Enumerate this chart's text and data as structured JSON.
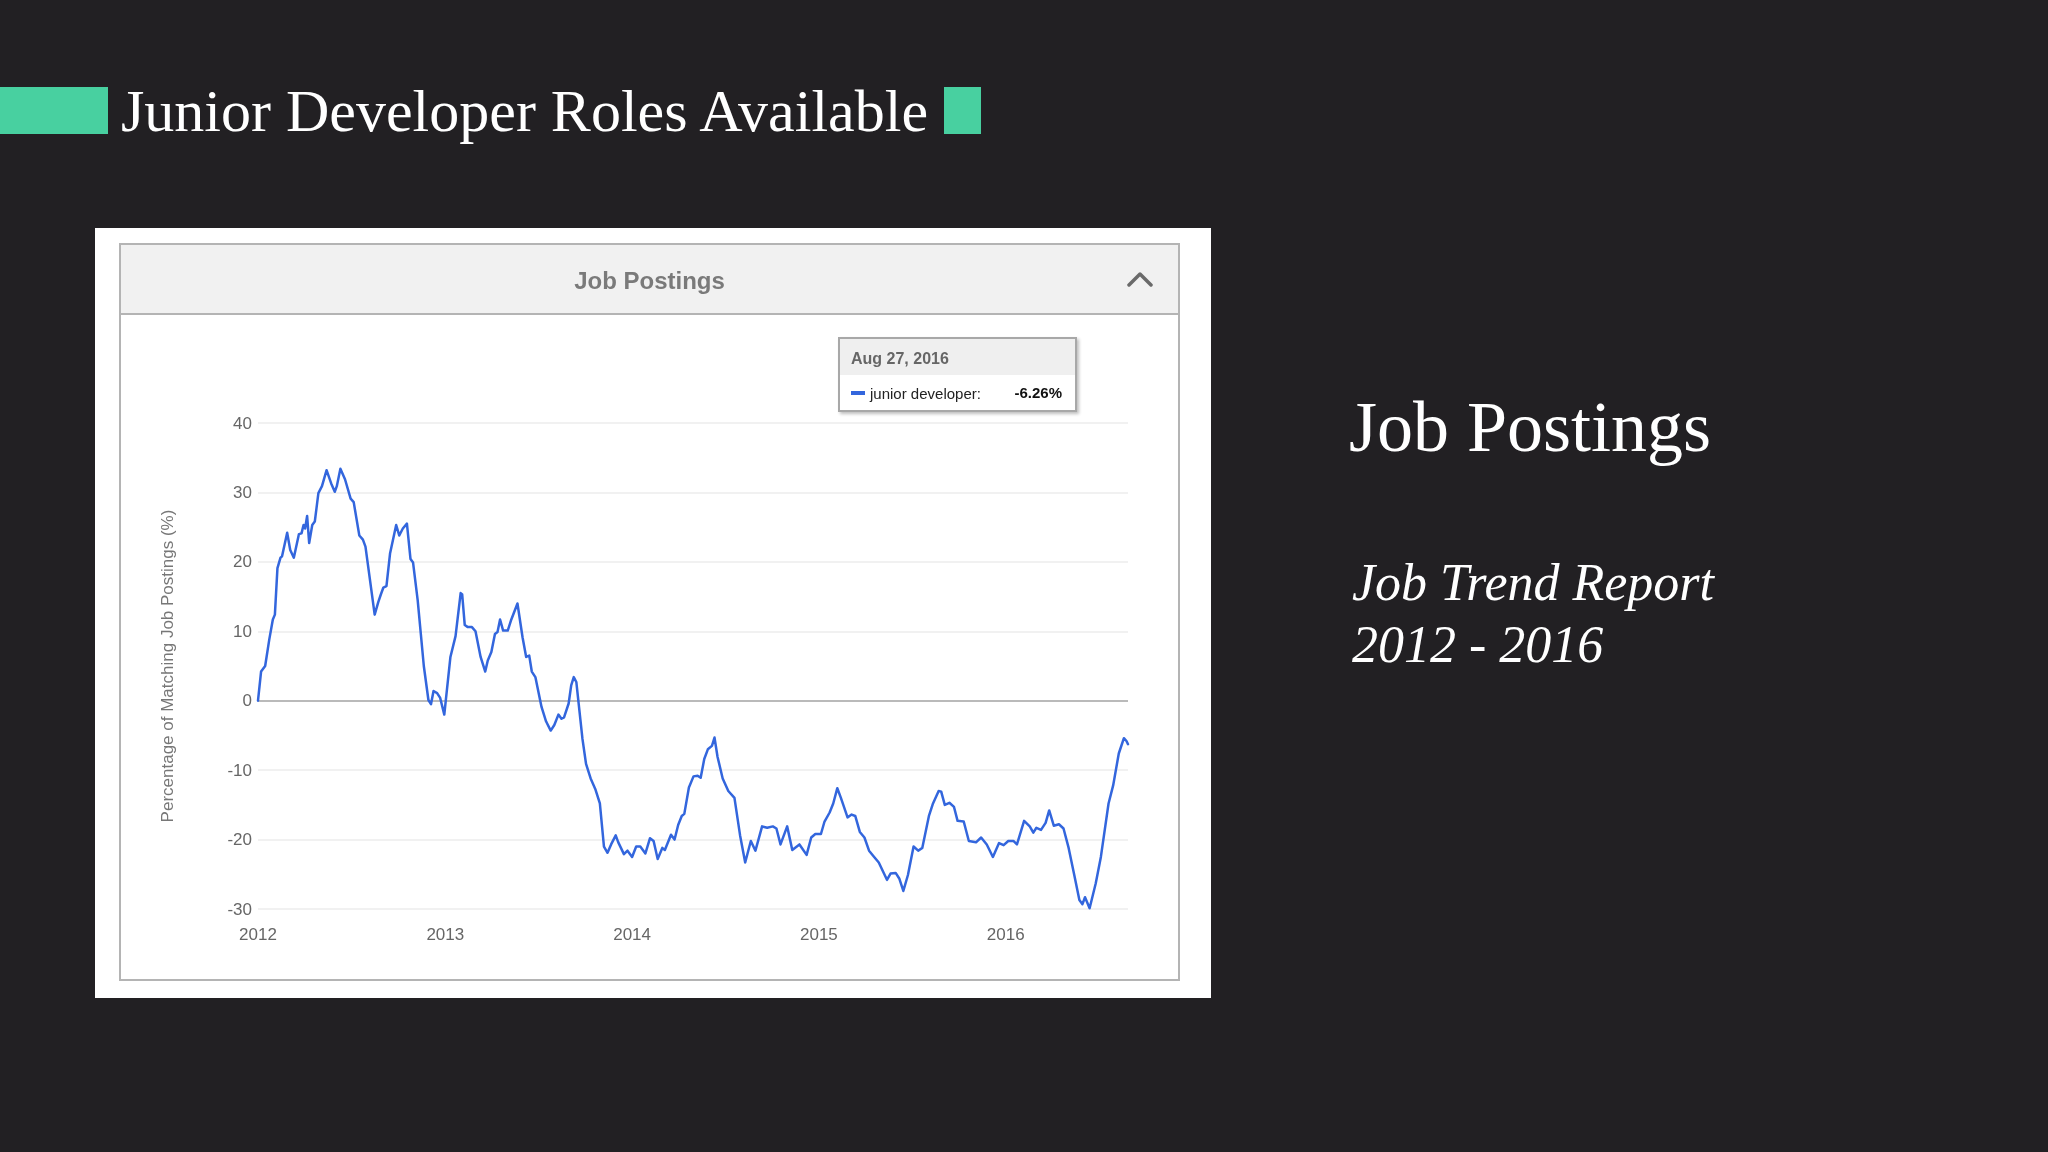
{
  "chart_data": {
    "type": "line",
    "title": "Junior Developer Roles Available",
    "subtitle": "Job Postings",
    "ylabel": "Percentage of Matching Job Postings (%)",
    "annotations": [
      "Job Postings",
      "Job Trend Report 2012 - 2016",
      "Aug 27, 2016",
      "-6.26%"
    ],
    "x": [
      "2012-01-01",
      "2012-01-07",
      "2012-01-15",
      "2012-01-23",
      "2012-01-30",
      "2012-02-03",
      "2012-02-08",
      "2012-02-14",
      "2012-02-17",
      "2012-02-27",
      "2012-03-04",
      "2012-03-11",
      "2012-03-21",
      "2012-03-26",
      "2012-03-30",
      "2012-04-02",
      "2012-04-06",
      "2012-04-10",
      "2012-04-16",
      "2012-04-21",
      "2012-04-28",
      "2012-05-05",
      "2012-05-14",
      "2012-05-23",
      "2012-05-30",
      "2012-06-03",
      "2012-06-10",
      "2012-06-19",
      "2012-06-30",
      "2012-07-06",
      "2012-07-17",
      "2012-07-24",
      "2012-07-29",
      "2012-08-16",
      "2012-08-23",
      "2012-08-28",
      "2012-09-02",
      "2012-09-08",
      "2012-09-15",
      "2012-09-27",
      "2012-10-03",
      "2012-10-10",
      "2012-10-18",
      "2012-10-25",
      "2012-10-30",
      "2012-11-08",
      "2012-11-20",
      "2012-11-29",
      "2012-12-04",
      "2012-12-09",
      "2012-12-16",
      "2012-12-22",
      "2012-12-30",
      "2013-01-11",
      "2013-01-21",
      "2013-01-31",
      "2013-02-03",
      "2013-02-08",
      "2013-02-14",
      "2013-02-22",
      "2013-03-01",
      "2013-03-11",
      "2013-03-20",
      "2013-03-25",
      "2013-04-01",
      "2013-04-08",
      "2013-04-13",
      "2013-04-18",
      "2013-04-24",
      "2013-05-03",
      "2013-05-10",
      "2013-05-22",
      "2013-06-01",
      "2013-06-08",
      "2013-06-14",
      "2013-06-19",
      "2013-06-26",
      "2013-07-08",
      "2013-07-17",
      "2013-07-26",
      "2013-08-02",
      "2013-08-10",
      "2013-08-16",
      "2013-08-21",
      "2013-08-30",
      "2013-09-04",
      "2013-09-09",
      "2013-09-14",
      "2013-09-26",
      "2013-10-03",
      "2013-10-12",
      "2013-10-21",
      "2013-10-30",
      "2013-11-07",
      "2013-11-14",
      "2013-11-21",
      "2013-11-30",
      "2013-12-05",
      "2013-12-16",
      "2013-12-23",
      "2014-01-01",
      "2014-01-09",
      "2014-01-17",
      "2014-01-27",
      "2014-02-05",
      "2014-02-12",
      "2014-02-20",
      "2014-03-01",
      "2014-03-06",
      "2014-03-18",
      "2014-03-25",
      "2014-04-01",
      "2014-04-08",
      "2014-04-13",
      "2014-04-22",
      "2014-05-01",
      "2014-05-09",
      "2014-05-15",
      "2014-05-22",
      "2014-05-29",
      "2014-06-06",
      "2014-06-11",
      "2014-06-17",
      "2014-06-27",
      "2014-07-08",
      "2014-07-20",
      "2014-07-31",
      "2014-08-10",
      "2014-08-21",
      "2014-08-30",
      "2014-09-12",
      "2014-09-22",
      "2014-10-03",
      "2014-10-10",
      "2014-10-18",
      "2014-10-31",
      "2014-11-10",
      "2014-11-24",
      "2014-12-08",
      "2014-12-17",
      "2014-12-25",
      "2015-01-05",
      "2015-01-12",
      "2015-01-22",
      "2015-01-29",
      "2015-02-06",
      "2015-02-13",
      "2015-02-26",
      "2015-03-06",
      "2015-03-13",
      "2015-03-22",
      "2015-03-31",
      "2015-04-09",
      "2015-04-19",
      "2015-04-28",
      "2015-05-14",
      "2015-05-21",
      "2015-05-31",
      "2015-06-07",
      "2015-06-15",
      "2015-06-24",
      "2015-07-05",
      "2015-07-14",
      "2015-07-22",
      "2015-08-04",
      "2015-08-12",
      "2015-08-23",
      "2015-08-28",
      "2015-09-04",
      "2015-09-13",
      "2015-09-22",
      "2015-09-29",
      "2015-10-11",
      "2015-10-21",
      "2015-11-04",
      "2015-11-14",
      "2015-11-25",
      "2015-12-07",
      "2015-12-19",
      "2015-12-28",
      "2016-01-06",
      "2016-01-16",
      "2016-01-23",
      "2016-02-06",
      "2016-02-17",
      "2016-02-24",
      "2016-03-01",
      "2016-03-10",
      "2016-03-19",
      "2016-03-26",
      "2016-04-04",
      "2016-04-14",
      "2016-04-23",
      "2016-05-03",
      "2016-05-14",
      "2016-05-24",
      "2016-05-30",
      "2016-06-04",
      "2016-06-13",
      "2016-06-25",
      "2016-07-05",
      "2016-07-20",
      "2016-07-29",
      "2016-08-09",
      "2016-08-19",
      "2016-08-24",
      "2016-08-27"
    ],
    "series": [
      {
        "name": "junior developer:",
        "color": "#3366dd",
        "values": [
          0,
          4.2,
          5.0,
          8.8,
          11.7,
          12.4,
          19.1,
          20.6,
          20.8,
          24.2,
          21.7,
          20.6,
          24.0,
          24.1,
          25.3,
          24.8,
          26.6,
          22.7,
          25.3,
          25.8,
          29.9,
          30.9,
          33.2,
          31.3,
          30.1,
          30.9,
          33.4,
          31.9,
          29.1,
          28.6,
          23.8,
          23.2,
          22.2,
          12.4,
          14.2,
          15.3,
          16.3,
          16.5,
          21.2,
          25.3,
          23.8,
          24.8,
          25.5,
          20.4,
          19.9,
          14.5,
          5.0,
          0.1,
          -0.5,
          1.4,
          1.1,
          0.4,
          -2.0,
          6.3,
          9.3,
          15.5,
          15.3,
          10.9,
          10.6,
          10.6,
          10.0,
          6.3,
          4.2,
          5.8,
          7.0,
          9.6,
          9.9,
          11.7,
          10.1,
          10.1,
          11.7,
          14.0,
          9.1,
          6.3,
          6.5,
          4.2,
          3.4,
          -0.9,
          -3.0,
          -4.3,
          -3.5,
          -2.0,
          -2.6,
          -2.4,
          -0.4,
          2.2,
          3.4,
          2.7,
          -5.5,
          -9.1,
          -11.2,
          -12.7,
          -14.8,
          -21.0,
          -21.9,
          -20.7,
          -19.4,
          -20.4,
          -22.1,
          -21.6,
          -22.5,
          -21.0,
          -21.0,
          -22.0,
          -19.8,
          -20.2,
          -22.8,
          -21.2,
          -21.5,
          -19.3,
          -20.0,
          -17.9,
          -16.6,
          -16.3,
          -12.5,
          -10.9,
          -10.8,
          -11.1,
          -8.4,
          -7.0,
          -6.5,
          -5.3,
          -8.1,
          -11.2,
          -13.0,
          -14.0,
          -19.4,
          -23.3,
          -20.2,
          -21.6,
          -18.1,
          -18.3,
          -18.1,
          -18.4,
          -20.7,
          -18.1,
          -21.5,
          -20.7,
          -22.2,
          -19.7,
          -19.2,
          -19.2,
          -17.4,
          -16.1,
          -14.8,
          -12.6,
          -14.0,
          -16.8,
          -16.4,
          -16.6,
          -18.9,
          -19.7,
          -21.6,
          -22.5,
          -23.3,
          -25.8,
          -24.9,
          -24.8,
          -25.6,
          -27.4,
          -25.1,
          -21.0,
          -21.6,
          -21.2,
          -16.6,
          -14.8,
          -13.0,
          -13.1,
          -15.0,
          -14.7,
          -15.3,
          -17.3,
          -17.4,
          -20.2,
          -20.4,
          -19.7,
          -20.7,
          -22.5,
          -20.5,
          -20.8,
          -20.2,
          -20.2,
          -20.7,
          -17.3,
          -18.1,
          -19.0,
          -18.3,
          -18.6,
          -17.6,
          -15.8,
          -18.0,
          -17.8,
          -18.4,
          -21.2,
          -25.1,
          -28.7,
          -29.3,
          -28.3,
          -29.9,
          -26.3,
          -22.5,
          -14.8,
          -12.2,
          -7.6,
          -5.4,
          -5.8,
          -6.26
        ]
      }
    ],
    "xlim": [
      "2012-01-01",
      "2016-08-27"
    ],
    "xticks": [
      "2012",
      "2013",
      "2014",
      "2015",
      "2016"
    ],
    "ylim": [
      -30,
      40
    ],
    "yticks": [
      -30,
      -20,
      -10,
      0,
      10,
      20,
      30,
      40
    ],
    "grid": "y",
    "legend": "top right",
    "marker": "none",
    "line_style": "solid"
  }
}
